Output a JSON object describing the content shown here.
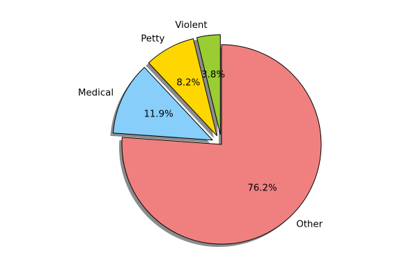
{
  "chart_data": {
    "type": "pie",
    "title": "",
    "slices": [
      {
        "label": "Other",
        "value": 76.2,
        "pct_label": "76.2%",
        "color": "#f08080",
        "exploded": false
      },
      {
        "label": "Medical",
        "value": 11.9,
        "pct_label": "11.9%",
        "color": "#87cefa",
        "exploded": true
      },
      {
        "label": "Petty",
        "value": 8.2,
        "pct_label": "8.2%",
        "color": "#ffd700",
        "exploded": true
      },
      {
        "label": "Violent",
        "value": 3.8,
        "pct_label": "3.8%",
        "color": "#9acd32",
        "exploded": true
      }
    ],
    "start_angle_deg": 90,
    "direction": "clockwise",
    "shadow": true
  }
}
